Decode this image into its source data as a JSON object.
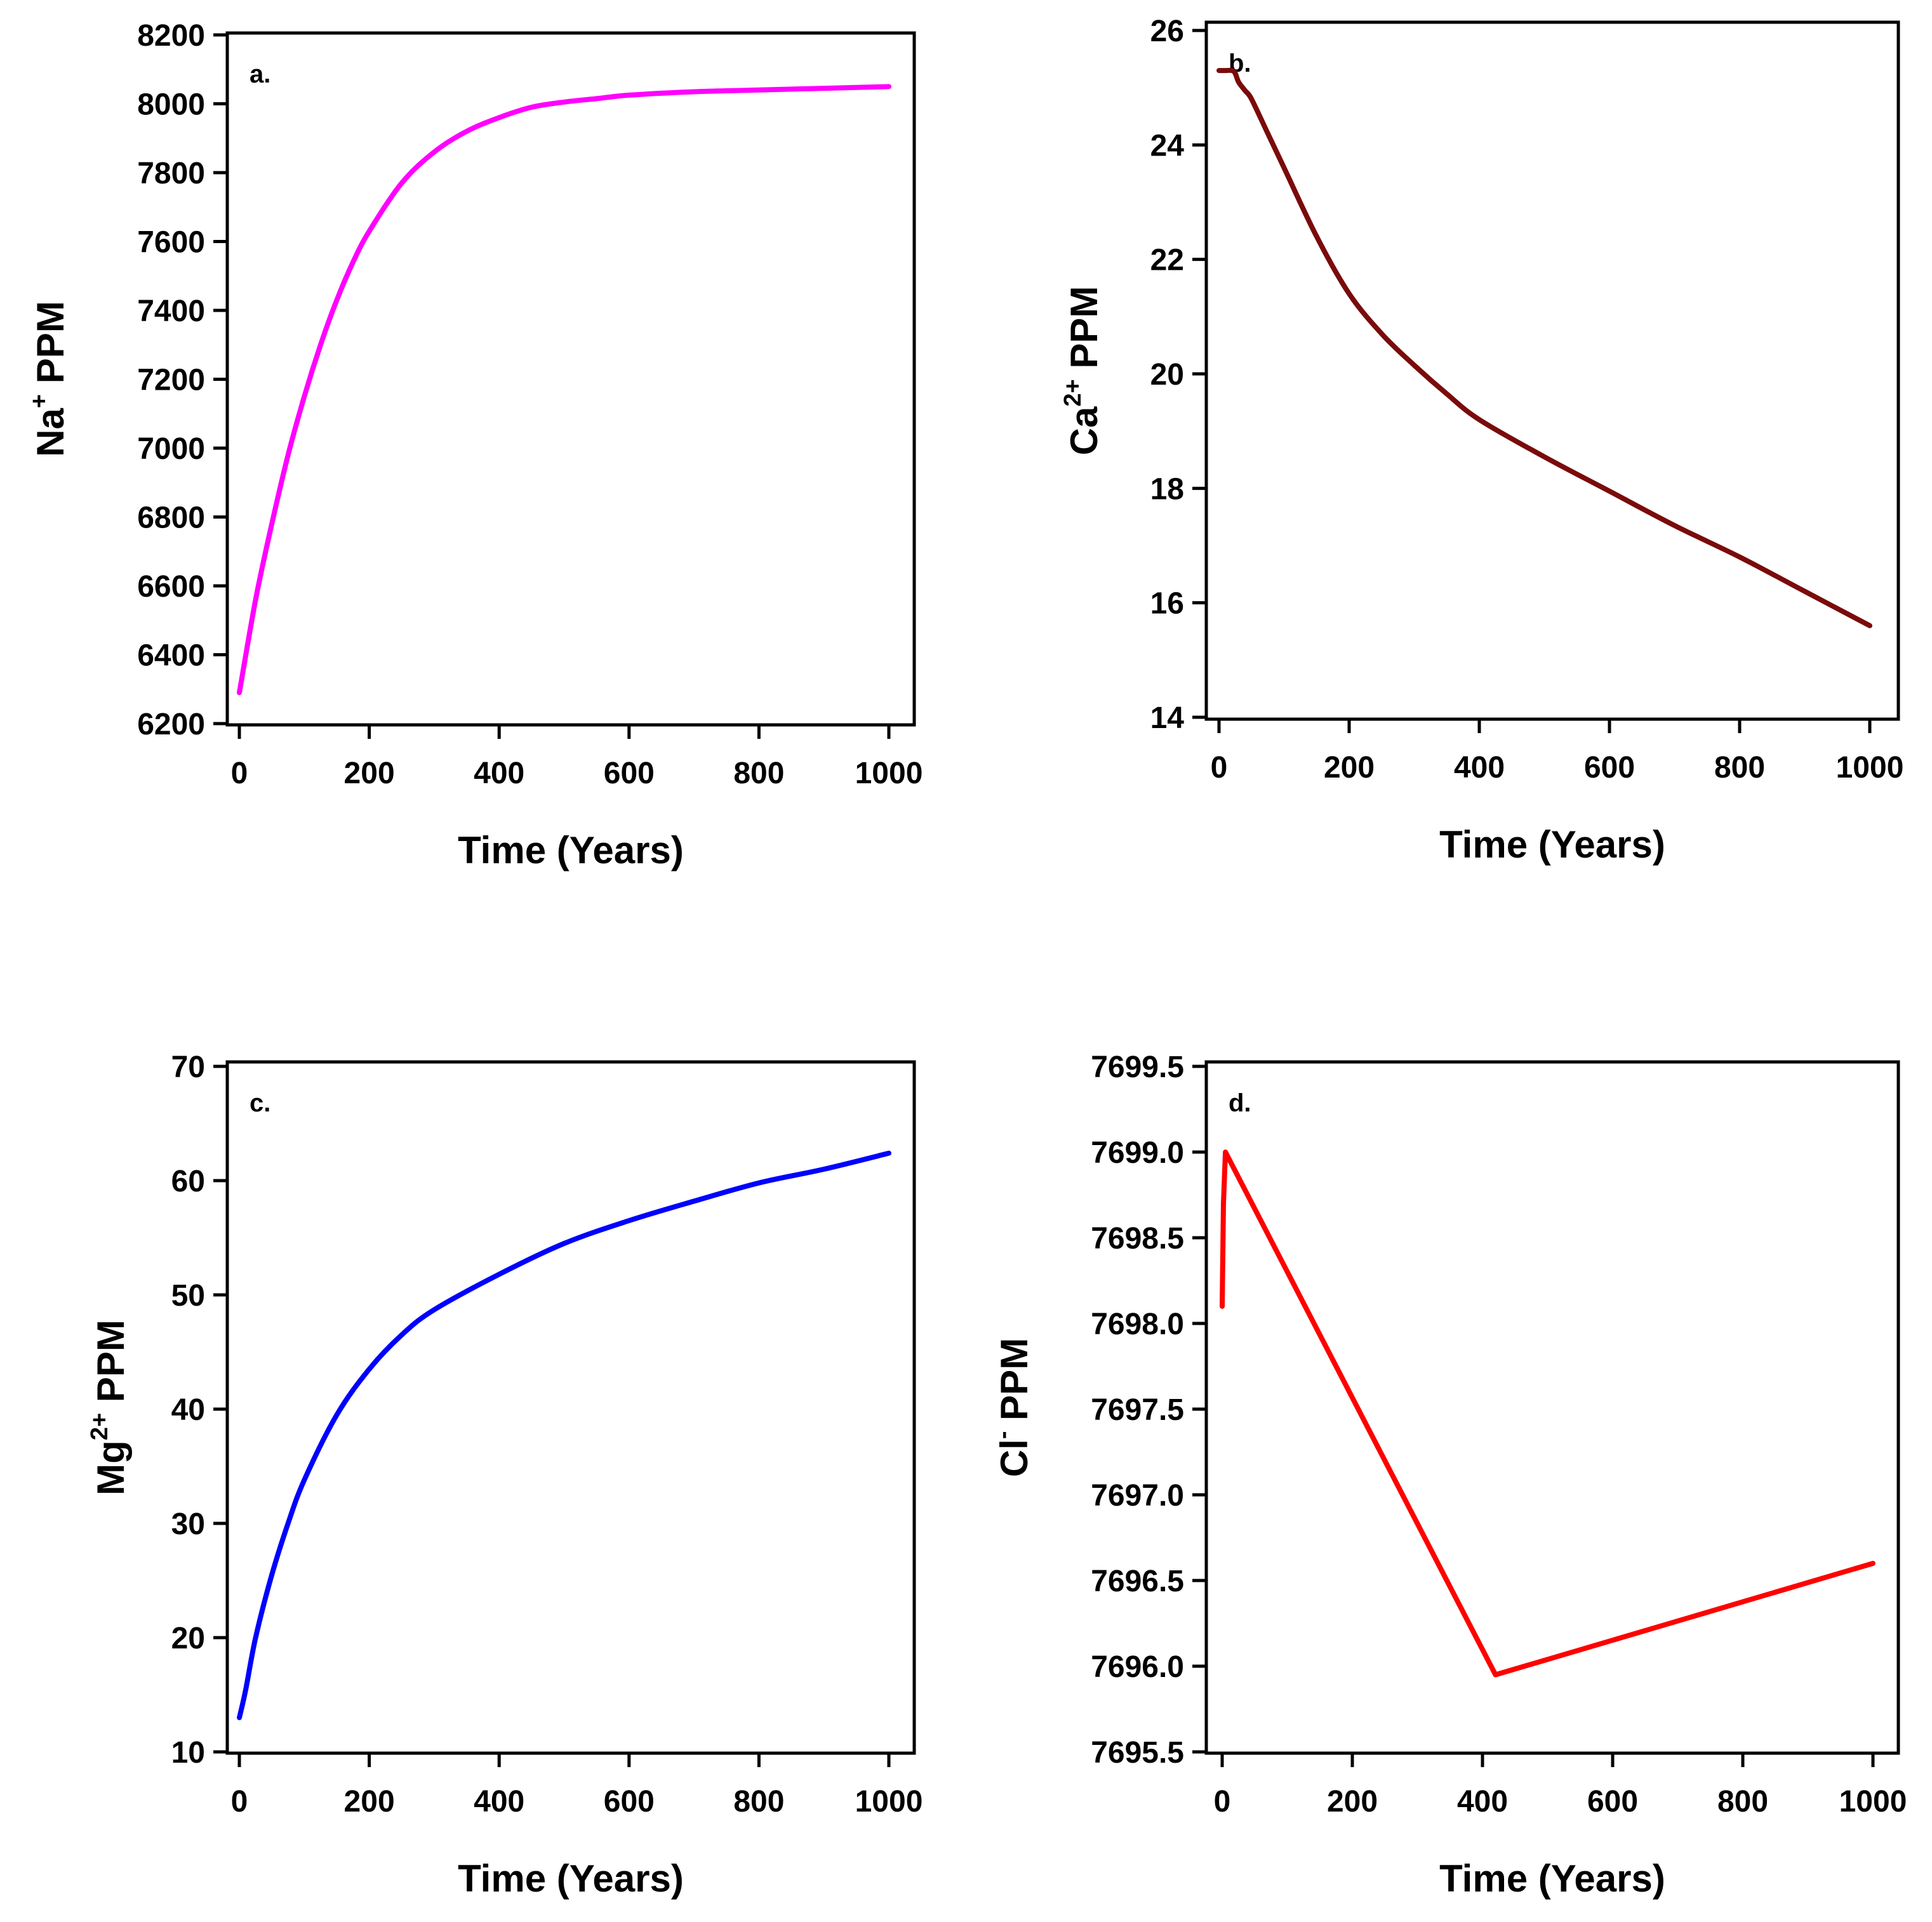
{
  "chart_data": [
    {
      "type": "line",
      "panel_label": "a.",
      "color": "#ff00ff",
      "xlabel": "Time (Years)",
      "ylabel": {
        "base": "Na",
        "sup": "+",
        "unit": " PPM"
      },
      "xlim": [
        0,
        1000
      ],
      "ylim": [
        6200,
        8200
      ],
      "xticks": [
        0,
        200,
        400,
        600,
        800,
        1000
      ],
      "xtick_labels": [
        "0",
        "200",
        "400",
        "600",
        "800",
        "1000"
      ],
      "yticks": [
        6200,
        6400,
        6600,
        6800,
        7000,
        7200,
        7400,
        7600,
        7800,
        8000,
        8200
      ],
      "ytick_labels": [
        "6200",
        "6400",
        "6600",
        "6800",
        "7000",
        "7200",
        "7400",
        "7600",
        "7800",
        "8000",
        "8200"
      ],
      "series": [
        {
          "name": "Na+",
          "x": [
            0,
            25,
            50,
            75,
            100,
            125,
            150,
            175,
            200,
            250,
            300,
            350,
            400,
            450,
            500,
            550,
            600,
            700,
            800,
            900,
            1000
          ],
          "y": [
            6290,
            6560,
            6780,
            6980,
            7150,
            7300,
            7430,
            7540,
            7630,
            7770,
            7860,
            7920,
            7960,
            7990,
            8005,
            8015,
            8025,
            8035,
            8040,
            8045,
            8050
          ]
        }
      ]
    },
    {
      "type": "line",
      "panel_label": "b.",
      "color": "#7a0b0b",
      "xlabel": "Time (Years)",
      "ylabel": {
        "base": "Ca",
        "sup": "2+",
        "unit": " PPM"
      },
      "xlim": [
        0,
        1000
      ],
      "ylim": [
        14,
        26
      ],
      "xticks": [
        0,
        200,
        400,
        600,
        800,
        1000
      ],
      "xtick_labels": [
        "0",
        "200",
        "400",
        "600",
        "800",
        "1000"
      ],
      "yticks": [
        14,
        16,
        18,
        20,
        22,
        24,
        26
      ],
      "ytick_labels": [
        "14",
        "16",
        "18",
        "20",
        "22",
        "24",
        "26"
      ],
      "series": [
        {
          "name": "Ca2+",
          "x": [
            0,
            10,
            20,
            25,
            30,
            40,
            50,
            75,
            100,
            150,
            200,
            250,
            300,
            350,
            400,
            500,
            600,
            700,
            800,
            900,
            1000
          ],
          "y": [
            25.3,
            25.3,
            25.3,
            25.25,
            25.1,
            24.95,
            24.8,
            24.2,
            23.6,
            22.4,
            21.4,
            20.7,
            20.15,
            19.65,
            19.2,
            18.55,
            17.95,
            17.35,
            16.8,
            16.2,
            15.6
          ]
        }
      ]
    },
    {
      "type": "line",
      "panel_label": "c.",
      "color": "#0000ff",
      "xlabel": "Time (Years)",
      "ylabel": {
        "base": "Mg",
        "sup": "2+",
        "unit": " PPM"
      },
      "xlim": [
        0,
        1000
      ],
      "ylim": [
        10,
        70
      ],
      "xticks": [
        0,
        200,
        400,
        600,
        800,
        1000
      ],
      "xtick_labels": [
        "0",
        "200",
        "400",
        "600",
        "800",
        "1000"
      ],
      "yticks": [
        10,
        20,
        30,
        40,
        50,
        60,
        70
      ],
      "ytick_labels": [
        "10",
        "20",
        "30",
        "40",
        "50",
        "60",
        "70"
      ],
      "series": [
        {
          "name": "Mg2+",
          "x": [
            0,
            10,
            25,
            50,
            75,
            100,
            150,
            200,
            250,
            300,
            400,
            500,
            600,
            700,
            800,
            900,
            1000
          ],
          "y": [
            13,
            15.5,
            20,
            25.5,
            30,
            33.8,
            39.5,
            43.5,
            46.5,
            48.7,
            51.8,
            54.5,
            56.5,
            58.2,
            59.8,
            61,
            62.4
          ]
        }
      ]
    },
    {
      "type": "line",
      "panel_label": "d.",
      "color": "#ff0000",
      "xlabel": "Time (Years)",
      "ylabel": {
        "base": "Cl",
        "sup": "-",
        "unit": " PPM"
      },
      "xlim": [
        0,
        1000
      ],
      "ylim": [
        7695.5,
        7699.5
      ],
      "xticks": [
        0,
        200,
        400,
        600,
        800,
        1000
      ],
      "xtick_labels": [
        "0",
        "200",
        "400",
        "600",
        "800",
        "1000"
      ],
      "yticks": [
        7695.5,
        7696.0,
        7696.5,
        7697.0,
        7697.5,
        7698.0,
        7698.5,
        7699.0,
        7699.5
      ],
      "ytick_labels": [
        "7695.5",
        "7696.0",
        "7696.5",
        "7697.0",
        "7697.5",
        "7698.0",
        "7698.5",
        "7699.0",
        "7699.5"
      ],
      "series": [
        {
          "name": "Cl-",
          "x": [
            0,
            2,
            5,
            420,
            1000
          ],
          "y": [
            7698.1,
            7698.7,
            7699.0,
            7695.95,
            7696.6
          ]
        }
      ]
    }
  ]
}
